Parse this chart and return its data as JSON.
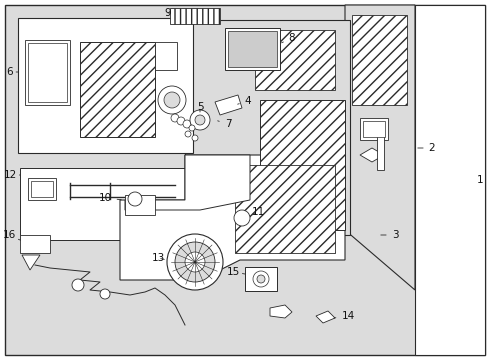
{
  "bg_color": "#ffffff",
  "outer_bg": "#dcdcdc",
  "line_color": "#2a2a2a",
  "label_color": "#111111",
  "fig_w": 4.9,
  "fig_h": 3.6,
  "dpi": 100
}
